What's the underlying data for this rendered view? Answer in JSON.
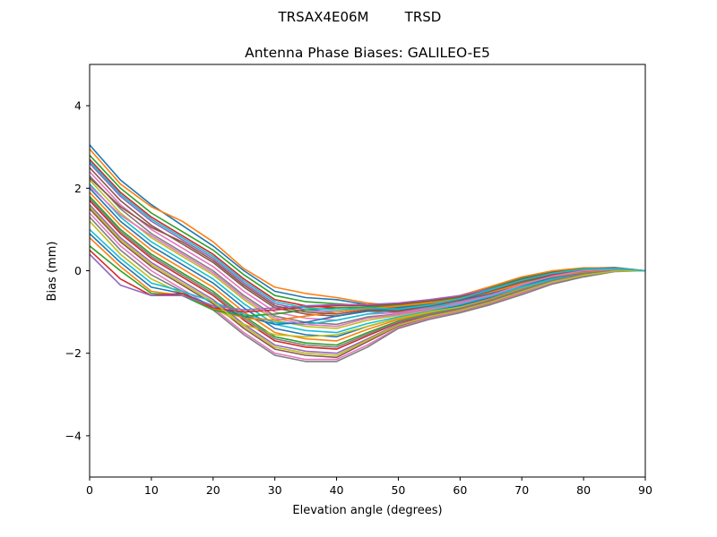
{
  "suptitle_left": "TRSAX4E06M",
  "suptitle_right": "TRSD",
  "chart_data": {
    "type": "line",
    "title": "Antenna Phase Biases: GALILEO-E5",
    "xlabel": "Elevation angle (degrees)",
    "ylabel": "Bias (mm)",
    "xlim": [
      0,
      90
    ],
    "ylim": [
      -5,
      5
    ],
    "xticks": [
      0,
      10,
      20,
      30,
      40,
      50,
      60,
      70,
      80,
      90
    ],
    "yticks": [
      -4,
      -2,
      0,
      2,
      4
    ],
    "ytick_labels": [
      "−4",
      "−2",
      "0",
      "2",
      "4"
    ],
    "grid": false,
    "legend": "none",
    "colors": [
      "#1f77b4",
      "#ff7f0e",
      "#2ca02c",
      "#d62728",
      "#9467bd",
      "#8c564b",
      "#e377c2",
      "#7f7f7f",
      "#bcbd22",
      "#17becf"
    ],
    "x": [
      0,
      5,
      10,
      15,
      20,
      25,
      30,
      35,
      40,
      45,
      50,
      55,
      60,
      65,
      70,
      75,
      80,
      85,
      90
    ],
    "series": [
      {
        "values": [
          3.05,
          2.2,
          1.6,
          1.1,
          0.6,
          0.0,
          -0.5,
          -0.65,
          -0.7,
          -0.82,
          -0.88,
          -0.78,
          -0.62,
          -0.4,
          -0.18,
          -0.02,
          0.06,
          0.08,
          0.0
        ]
      },
      {
        "values": [
          2.95,
          2.1,
          1.55,
          1.2,
          0.7,
          0.05,
          -0.4,
          -0.55,
          -0.65,
          -0.78,
          -0.85,
          -0.75,
          -0.6,
          -0.38,
          -0.15,
          0.0,
          0.07,
          0.07,
          0.0
        ]
      },
      {
        "values": [
          2.8,
          2.0,
          1.4,
          0.95,
          0.5,
          -0.1,
          -0.6,
          -0.75,
          -0.8,
          -0.85,
          -0.9,
          -0.8,
          -0.65,
          -0.42,
          -0.2,
          -0.04,
          0.05,
          0.06,
          0.0
        ]
      },
      {
        "values": [
          2.7,
          1.9,
          1.3,
          0.85,
          0.4,
          -0.2,
          -0.7,
          -0.85,
          -0.9,
          -0.88,
          -0.92,
          -0.82,
          -0.67,
          -0.45,
          -0.22,
          -0.05,
          0.04,
          0.05,
          0.0
        ]
      },
      {
        "values": [
          2.6,
          1.8,
          1.2,
          0.75,
          0.3,
          -0.3,
          -0.8,
          -0.95,
          -1.0,
          -0.92,
          -0.95,
          -0.85,
          -0.7,
          -0.48,
          -0.25,
          -0.07,
          0.03,
          0.05,
          0.0
        ]
      },
      {
        "values": [
          2.5,
          1.7,
          1.1,
          0.65,
          0.2,
          -0.4,
          -0.9,
          -1.05,
          -1.1,
          -0.98,
          -1.0,
          -0.88,
          -0.72,
          -0.5,
          -0.28,
          -0.09,
          0.02,
          0.04,
          0.0
        ]
      },
      {
        "values": [
          2.4,
          1.6,
          1.0,
          0.55,
          0.1,
          -0.5,
          -1.0,
          -1.15,
          -1.2,
          -1.05,
          -1.02,
          -0.9,
          -0.75,
          -0.55,
          -0.3,
          -0.1,
          0.01,
          0.04,
          0.0
        ]
      },
      {
        "values": [
          2.3,
          1.5,
          0.9,
          0.45,
          0.0,
          -0.6,
          -1.1,
          -1.25,
          -1.3,
          -1.12,
          -1.05,
          -0.93,
          -0.78,
          -0.58,
          -0.33,
          -0.12,
          0.0,
          0.03,
          0.0
        ]
      },
      {
        "values": [
          2.2,
          1.4,
          0.8,
          0.35,
          -0.1,
          -0.7,
          -1.2,
          -1.35,
          -1.4,
          -1.2,
          -1.08,
          -0.95,
          -0.8,
          -0.6,
          -0.35,
          -0.14,
          -0.01,
          0.03,
          0.0
        ]
      },
      {
        "values": [
          2.1,
          1.3,
          0.7,
          0.25,
          -0.2,
          -0.8,
          -1.3,
          -1.45,
          -1.5,
          -1.28,
          -1.12,
          -0.98,
          -0.82,
          -0.62,
          -0.38,
          -0.16,
          -0.03,
          0.02,
          0.0
        ]
      },
      {
        "values": [
          2.0,
          1.2,
          0.6,
          0.15,
          -0.3,
          -0.9,
          -1.4,
          -1.55,
          -1.6,
          -1.35,
          -1.15,
          -1.0,
          -0.85,
          -0.65,
          -0.4,
          -0.18,
          -0.04,
          0.02,
          0.0
        ]
      },
      {
        "values": [
          1.9,
          1.1,
          0.5,
          0.05,
          -0.4,
          -1.0,
          -1.5,
          -1.65,
          -1.7,
          -1.42,
          -1.18,
          -1.02,
          -0.88,
          -0.68,
          -0.43,
          -0.2,
          -0.05,
          0.01,
          0.0
        ]
      },
      {
        "values": [
          1.8,
          1.0,
          0.4,
          -0.05,
          -0.5,
          -1.1,
          -1.6,
          -1.75,
          -1.8,
          -1.5,
          -1.22,
          -1.05,
          -0.9,
          -0.7,
          -0.45,
          -0.22,
          -0.07,
          0.01,
          0.0
        ]
      },
      {
        "values": [
          1.7,
          0.9,
          0.3,
          -0.15,
          -0.6,
          -1.2,
          -1.7,
          -1.85,
          -1.9,
          -1.58,
          -1.26,
          -1.08,
          -0.92,
          -0.72,
          -0.48,
          -0.24,
          -0.08,
          0.0,
          0.0
        ]
      },
      {
        "values": [
          1.6,
          0.8,
          0.2,
          -0.25,
          -0.7,
          -1.3,
          -1.8,
          -1.95,
          -2.0,
          -1.65,
          -1.3,
          -1.1,
          -0.95,
          -0.75,
          -0.5,
          -0.26,
          -0.1,
          0.0,
          0.0
        ]
      },
      {
        "values": [
          1.5,
          0.7,
          0.1,
          -0.35,
          -0.8,
          -1.4,
          -1.9,
          -2.05,
          -2.1,
          -1.72,
          -1.34,
          -1.12,
          -0.98,
          -0.78,
          -0.53,
          -0.28,
          -0.12,
          -0.01,
          0.0
        ]
      },
      {
        "values": [
          1.4,
          0.6,
          0.0,
          -0.45,
          -0.9,
          -1.5,
          -2.0,
          -2.15,
          -2.15,
          -1.8,
          -1.38,
          -1.15,
          -1.0,
          -0.8,
          -0.55,
          -0.3,
          -0.13,
          -0.01,
          0.0
        ]
      },
      {
        "values": [
          1.3,
          0.5,
          -0.1,
          -0.5,
          -0.95,
          -1.55,
          -2.05,
          -2.2,
          -2.2,
          -1.85,
          -1.4,
          -1.18,
          -1.02,
          -0.82,
          -0.58,
          -0.32,
          -0.15,
          -0.02,
          0.0
        ]
      },
      {
        "values": [
          1.2,
          0.4,
          -0.2,
          -0.55,
          -0.9,
          -1.3,
          -1.55,
          -1.6,
          -1.55,
          -1.35,
          -1.15,
          -1.0,
          -0.88,
          -0.7,
          -0.45,
          -0.22,
          -0.07,
          0.01,
          0.0
        ]
      },
      {
        "values": [
          1.0,
          0.3,
          -0.3,
          -0.5,
          -0.75,
          -1.05,
          -1.25,
          -1.3,
          -1.2,
          -1.05,
          -0.95,
          -0.88,
          -0.78,
          -0.62,
          -0.4,
          -0.2,
          -0.06,
          0.01,
          0.0
        ]
      },
      {
        "values": [
          0.9,
          0.2,
          -0.4,
          -0.55,
          -0.85,
          -1.1,
          -1.3,
          -1.25,
          -1.1,
          -0.98,
          -0.9,
          -0.82,
          -0.72,
          -0.55,
          -0.35,
          -0.16,
          -0.04,
          0.02,
          0.0
        ]
      },
      {
        "values": [
          0.8,
          0.1,
          -0.5,
          -0.6,
          -0.9,
          -1.15,
          -1.2,
          -1.1,
          -1.0,
          -0.92,
          -0.86,
          -0.78,
          -0.68,
          -0.52,
          -0.32,
          -0.14,
          -0.03,
          0.02,
          0.0
        ]
      },
      {
        "values": [
          0.6,
          0.0,
          -0.55,
          -0.6,
          -0.95,
          -1.1,
          -1.05,
          -0.95,
          -0.9,
          -0.88,
          -0.82,
          -0.74,
          -0.64,
          -0.48,
          -0.28,
          -0.11,
          -0.01,
          0.03,
          0.0
        ]
      },
      {
        "values": [
          0.5,
          -0.2,
          -0.6,
          -0.55,
          -0.9,
          -1.0,
          -0.95,
          -0.88,
          -0.85,
          -0.84,
          -0.8,
          -0.72,
          -0.62,
          -0.46,
          -0.26,
          -0.1,
          0.0,
          0.03,
          0.0
        ]
      },
      {
        "values": [
          0.4,
          -0.35,
          -0.6,
          -0.6,
          -0.85,
          -0.95,
          -0.9,
          -0.85,
          -0.82,
          -0.82,
          -0.78,
          -0.7,
          -0.6,
          -0.44,
          -0.24,
          -0.08,
          0.01,
          0.04,
          0.0
        ]
      },
      {
        "values": [
          2.25,
          1.55,
          1.05,
          0.7,
          0.25,
          -0.35,
          -0.85,
          -1.0,
          -1.05,
          -0.95,
          -0.97,
          -0.86,
          -0.71,
          -0.49,
          -0.27,
          -0.08,
          0.02,
          0.04,
          0.0
        ]
      },
      {
        "values": [
          2.05,
          1.35,
          0.85,
          0.4,
          -0.05,
          -0.65,
          -1.15,
          -1.3,
          -1.35,
          -1.15,
          -1.06,
          -0.94,
          -0.79,
          -0.59,
          -0.34,
          -0.13,
          0.0,
          0.03,
          0.0
        ]
      },
      {
        "values": [
          1.75,
          0.95,
          0.35,
          -0.1,
          -0.55,
          -1.15,
          -1.65,
          -1.8,
          -1.85,
          -1.54,
          -1.24,
          -1.06,
          -0.91,
          -0.71,
          -0.46,
          -0.23,
          -0.07,
          0.0,
          0.0
        ]
      },
      {
        "values": [
          1.55,
          0.75,
          0.15,
          -0.3,
          -0.75,
          -1.35,
          -1.85,
          -2.0,
          -2.05,
          -1.68,
          -1.32,
          -1.11,
          -0.96,
          -0.76,
          -0.51,
          -0.27,
          -0.11,
          -0.01,
          0.0
        ]
      },
      {
        "values": [
          2.65,
          1.85,
          1.25,
          0.8,
          0.35,
          -0.25,
          -0.75,
          -0.9,
          -0.95,
          -0.9,
          -0.93,
          -0.83,
          -0.68,
          -0.46,
          -0.23,
          -0.06,
          0.04,
          0.05,
          0.0
        ]
      }
    ]
  }
}
